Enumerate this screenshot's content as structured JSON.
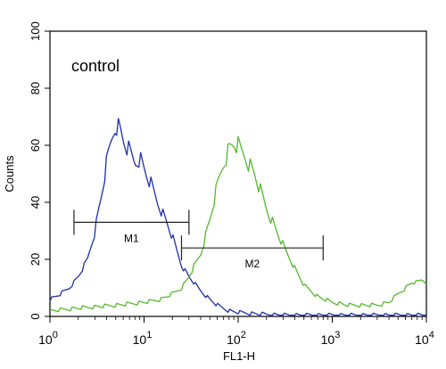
{
  "chart_data": {
    "type": "line",
    "xlabel": "FL1-H",
    "ylabel": "Counts",
    "x_scale": "log",
    "xlim": [
      1,
      10000
    ],
    "ylim": [
      0,
      100
    ],
    "x_ticks": [
      {
        "value": 1,
        "base": "10",
        "exp": "0"
      },
      {
        "value": 10,
        "base": "10",
        "exp": "1"
      },
      {
        "value": 100,
        "base": "10",
        "exp": "2"
      },
      {
        "value": 1000,
        "base": "10",
        "exp": "3"
      },
      {
        "value": 10000,
        "base": "10",
        "exp": "4"
      }
    ],
    "y_ticks": [
      0,
      20,
      40,
      60,
      80,
      100
    ],
    "annotation": "control",
    "series": [
      {
        "color": "#1f2fa8",
        "x": [
          1.0,
          1.3,
          1.6,
          2.0,
          2.5,
          3.0,
          3.5,
          4.0,
          4.5,
          5.0,
          5.5,
          6.0,
          7.0,
          8.0,
          9.0,
          10.0,
          12.0,
          14.0,
          17.0,
          20.0,
          25.0,
          30.0,
          40.0,
          50.0,
          60.0,
          80.0,
          100.0,
          150.0,
          300.0,
          1000.0,
          10000.0
        ],
        "y": [
          6,
          8,
          10,
          14,
          20,
          30,
          42,
          54,
          62,
          68,
          66,
          62,
          58,
          54,
          56,
          52,
          46,
          40,
          34,
          28,
          18,
          14,
          9,
          6,
          4,
          2,
          1.5,
          1,
          0.5,
          0.5,
          0.5
        ]
      },
      {
        "color": "#55b82e",
        "x": [
          1.0,
          2.0,
          5.0,
          10.0,
          15.0,
          20.0,
          25.0,
          30.0,
          40.0,
          50.0,
          60.0,
          70.0,
          80.0,
          90.0,
          100.0,
          120.0,
          150.0,
          200.0,
          300.0,
          400.0,
          500.0,
          700.0,
          1000.0,
          1500.0,
          2000.0,
          3000.0,
          4000.0,
          5000.0,
          6000.0,
          7000.0,
          8000.0,
          9000.0,
          10000.0
        ],
        "y": [
          2,
          3,
          4,
          5,
          6,
          8,
          10,
          14,
          22,
          34,
          46,
          54,
          59,
          61,
          60,
          56,
          50,
          38,
          25,
          17,
          11,
          7,
          5,
          4,
          4,
          4,
          5,
          8,
          10,
          12,
          12,
          13,
          12
        ]
      }
    ],
    "markers": [
      {
        "label": "M1",
        "x_start": 1.8,
        "x_end": 30,
        "y": 33
      },
      {
        "label": "M2",
        "x_start": 25,
        "x_end": 800,
        "y": 24
      }
    ],
    "grid": false
  }
}
